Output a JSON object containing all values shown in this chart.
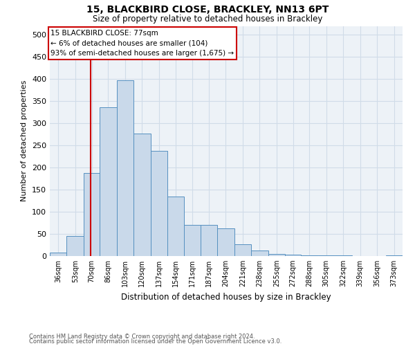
{
  "title1": "15, BLACKBIRD CLOSE, BRACKLEY, NN13 6PT",
  "title2": "Size of property relative to detached houses in Brackley",
  "xlabel": "Distribution of detached houses by size in Brackley",
  "ylabel": "Number of detached properties",
  "footnote1": "Contains HM Land Registry data © Crown copyright and database right 2024.",
  "footnote2": "Contains public sector information licensed under the Open Government Licence v3.0.",
  "bin_labels": [
    "36sqm",
    "53sqm",
    "70sqm",
    "86sqm",
    "103sqm",
    "120sqm",
    "137sqm",
    "154sqm",
    "171sqm",
    "187sqm",
    "204sqm",
    "221sqm",
    "238sqm",
    "255sqm",
    "272sqm",
    "288sqm",
    "305sqm",
    "322sqm",
    "339sqm",
    "356sqm",
    "373sqm"
  ],
  "bar_values": [
    8,
    46,
    187,
    337,
    397,
    277,
    238,
    135,
    70,
    70,
    62,
    26,
    12,
    5,
    3,
    2,
    1,
    1,
    0,
    0,
    1
  ],
  "bin_edges": [
    36,
    53,
    70,
    86,
    103,
    120,
    137,
    154,
    171,
    187,
    204,
    221,
    238,
    255,
    272,
    288,
    305,
    322,
    339,
    356,
    373,
    390
  ],
  "property_size": 77,
  "annotation_title": "15 BLACKBIRD CLOSE: 77sqm",
  "annotation_line1": "← 6% of detached houses are smaller (104)",
  "annotation_line2": "93% of semi-detached houses are larger (1,675) →",
  "bar_color": "#c9d9ea",
  "bar_edge_color": "#5590c0",
  "red_line_color": "#cc0000",
  "annotation_box_color": "#ffffff",
  "annotation_box_edge": "#cc0000",
  "grid_color": "#d0dce8",
  "background_color": "#edf2f7",
  "ylim": [
    0,
    520
  ],
  "yticks": [
    0,
    50,
    100,
    150,
    200,
    250,
    300,
    350,
    400,
    450,
    500
  ]
}
